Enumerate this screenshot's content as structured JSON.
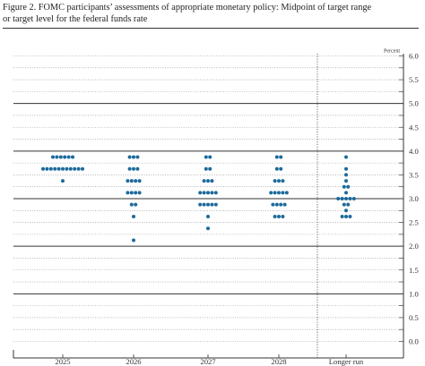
{
  "figure": {
    "title_line1": "Figure 2. FOMC participants’ assessments of appropriate monetary policy: Midpoint of target range",
    "title_line2": "or target level for the federal funds rate"
  },
  "chart_data": {
    "type": "scatter",
    "unit_label": "Percent",
    "categories": [
      "2025",
      "2026",
      "2027",
      "2028",
      "Longer run"
    ],
    "ylim": [
      -0.125,
      6.125
    ],
    "y_ticks": [
      "6.0",
      "5.5",
      "5.0",
      "4.5",
      "4.0",
      "3.5",
      "3.0",
      "2.5",
      "2.0",
      "1.5",
      "1.0",
      "0.5",
      "0.0"
    ],
    "major_gridlines": [
      5.0,
      4.0,
      3.0,
      2.0,
      1.0
    ],
    "grid": true,
    "dot_color": "#1d6a9b",
    "dots": [
      {
        "category": "2025",
        "counts": [
          {
            "y": 3.875,
            "n": 6
          },
          {
            "y": 3.625,
            "n": 11
          },
          {
            "y": 3.375,
            "n": 1
          }
        ]
      },
      {
        "category": "2026",
        "counts": [
          {
            "y": 3.875,
            "n": 3
          },
          {
            "y": 3.625,
            "n": 3
          },
          {
            "y": 3.375,
            "n": 4
          },
          {
            "y": 3.125,
            "n": 4
          },
          {
            "y": 2.875,
            "n": 2
          },
          {
            "y": 2.625,
            "n": 1
          },
          {
            "y": 2.125,
            "n": 1
          }
        ]
      },
      {
        "category": "2027",
        "counts": [
          {
            "y": 3.875,
            "n": 2
          },
          {
            "y": 3.625,
            "n": 2
          },
          {
            "y": 3.375,
            "n": 3
          },
          {
            "y": 3.125,
            "n": 5
          },
          {
            "y": 2.875,
            "n": 5
          },
          {
            "y": 2.625,
            "n": 1
          },
          {
            "y": 2.375,
            "n": 1
          }
        ]
      },
      {
        "category": "2028",
        "counts": [
          {
            "y": 3.875,
            "n": 2
          },
          {
            "y": 3.625,
            "n": 2
          },
          {
            "y": 3.375,
            "n": 3
          },
          {
            "y": 3.125,
            "n": 5
          },
          {
            "y": 2.875,
            "n": 4
          },
          {
            "y": 2.625,
            "n": 3
          }
        ]
      },
      {
        "category": "Longer run",
        "counts": [
          {
            "y": 3.875,
            "n": 1
          },
          {
            "y": 3.625,
            "n": 1
          },
          {
            "y": 3.5,
            "n": 1
          },
          {
            "y": 3.375,
            "n": 1
          },
          {
            "y": 3.25,
            "n": 2
          },
          {
            "y": 3.125,
            "n": 1
          },
          {
            "y": 3.0,
            "n": 5
          },
          {
            "y": 2.875,
            "n": 2
          },
          {
            "y": 2.75,
            "n": 1
          },
          {
            "y": 2.625,
            "n": 3
          }
        ]
      }
    ]
  }
}
